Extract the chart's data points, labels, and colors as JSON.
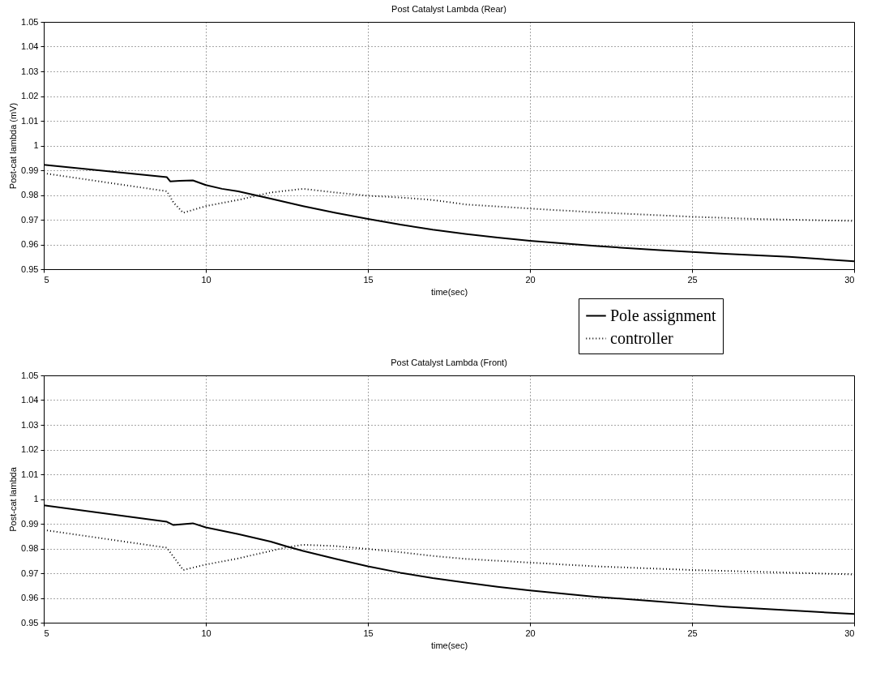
{
  "chart_data": [
    {
      "type": "line",
      "title": "Post Catalyst Lambda (Rear)",
      "xlabel": "time(sec)",
      "ylabel": "Post-cat lambda (mV)",
      "xlim": [
        5,
        30
      ],
      "xticks": [
        5,
        10,
        15,
        20,
        25,
        30
      ],
      "ylim": [
        0.95,
        1.05
      ],
      "yticks": [
        0.95,
        0.96,
        0.97,
        0.98,
        0.99,
        1,
        1.01,
        1.02,
        1.03,
        1.04,
        1.05
      ],
      "grid": true,
      "legend": "bottom right",
      "series": [
        {
          "name": "Pole assignment",
          "color": "#000000",
          "line_style": "solid",
          "x": [
            5,
            8.8,
            8.9,
            9.2,
            9.6,
            10,
            10.5,
            11,
            12,
            13,
            14,
            15,
            16,
            17,
            18,
            19,
            20,
            22,
            24,
            26,
            28,
            30
          ],
          "values": [
            0.9922,
            0.9872,
            0.9855,
            0.9857,
            0.9859,
            0.984,
            0.9825,
            0.9815,
            0.9785,
            0.9755,
            0.9728,
            0.9703,
            0.968,
            0.966,
            0.9643,
            0.9628,
            0.9615,
            0.9594,
            0.9577,
            0.9562,
            0.955,
            0.9532
          ]
        },
        {
          "name": "controller",
          "color": "#000000",
          "line_style": "dotted",
          "x": [
            5,
            8.8,
            9.0,
            9.3,
            10,
            11,
            12,
            13,
            14,
            15,
            16,
            17,
            18,
            20,
            22,
            25,
            27,
            30
          ],
          "values": [
            0.9888,
            0.9815,
            0.977,
            0.9728,
            0.9755,
            0.978,
            0.981,
            0.9825,
            0.981,
            0.9797,
            0.979,
            0.978,
            0.9762,
            0.9745,
            0.973,
            0.9712,
            0.9703,
            0.9695
          ]
        }
      ]
    },
    {
      "type": "line",
      "title": "Post Catalyst Lambda (Front)",
      "xlabel": "time(sec)",
      "ylabel": "Post-cat lambda",
      "xlim": [
        5,
        30
      ],
      "xticks": [
        5,
        10,
        15,
        20,
        25,
        30
      ],
      "ylim": [
        0.95,
        1.05
      ],
      "yticks": [
        0.95,
        0.96,
        0.97,
        0.98,
        0.99,
        1,
        1.01,
        1.02,
        1.03,
        1.04,
        1.05
      ],
      "grid": true,
      "series": [
        {
          "color": "#000000",
          "line_style": "solid",
          "x": [
            5,
            8.8,
            9.0,
            9.6,
            10,
            11,
            12,
            12.5,
            13,
            14,
            15,
            16,
            17,
            18,
            19,
            20,
            22,
            24,
            25,
            26,
            28,
            30
          ],
          "values": [
            0.9975,
            0.9908,
            0.9895,
            0.9902,
            0.9885,
            0.9858,
            0.9828,
            0.9808,
            0.979,
            0.9758,
            0.9728,
            0.9702,
            0.968,
            0.9662,
            0.9645,
            0.963,
            0.9605,
            0.9585,
            0.9575,
            0.9565,
            0.955,
            0.9535
          ]
        },
        {
          "color": "#000000",
          "line_style": "dotted",
          "x": [
            5,
            8.8,
            9.3,
            10,
            11,
            12,
            12.5,
            13,
            14,
            15,
            16,
            17,
            18,
            20,
            22,
            25,
            27,
            30
          ],
          "values": [
            0.9875,
            0.9803,
            0.9713,
            0.9735,
            0.976,
            0.979,
            0.9805,
            0.9815,
            0.981,
            0.9798,
            0.9785,
            0.977,
            0.9758,
            0.9743,
            0.9728,
            0.9713,
            0.9706,
            0.9695
          ]
        }
      ]
    }
  ]
}
